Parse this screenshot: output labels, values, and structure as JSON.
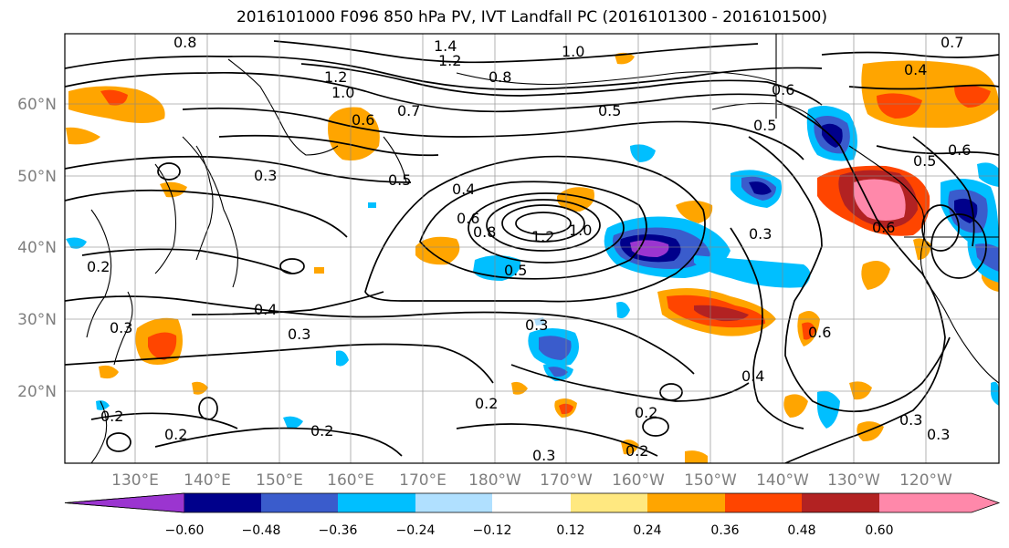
{
  "title": "2016101000 F096 850 hPa PV, IVT Landfall PC (2016101300 - 2016101500)",
  "map": {
    "lat_labels": [
      "60°N",
      "50°N",
      "40°N",
      "30°N",
      "20°N"
    ],
    "lon_labels": [
      "130°E",
      "140°E",
      "150°E",
      "160°E",
      "170°E",
      "180°W",
      "170°W",
      "160°W",
      "150°W",
      "140°W",
      "130°W",
      "120°W"
    ],
    "gridlines": true
  },
  "contour_labels": [
    "0.8",
    "1.4",
    "1.2",
    "1.0",
    "1.2",
    "1.0",
    "0.8",
    "0.7",
    "0.7",
    "0.5",
    "0.6",
    "0.4",
    "0.6",
    "0.5",
    "0.6",
    "0.3",
    "0.5",
    "0.4",
    "0.6",
    "0.8",
    "1.2",
    "1.0",
    "0.3",
    "0.5",
    "0.6",
    "0.5",
    "0.2",
    "0.4",
    "0.3",
    "0.3",
    "0.3",
    "0.6",
    "0.2",
    "0.4",
    "0.2",
    "0.2",
    "0.2",
    "0.2",
    "0.3",
    "0.3",
    "0.2",
    "0.3"
  ],
  "colorbar": {
    "ticks": [
      "−0.60",
      "−0.48",
      "−0.36",
      "−0.24",
      "−0.12",
      "0.12",
      "0.24",
      "0.36",
      "0.48",
      "0.60"
    ],
    "colors": [
      "#9b35d0",
      "#00008b",
      "#3a5ccc",
      "#00bfff",
      "#b0e0ff",
      "#ffffff",
      "#ffe880",
      "#ffa500",
      "#ff4500",
      "#b22222",
      "#ff88aa"
    ]
  },
  "shading_colors": {
    "neg_high": "#9b35d0",
    "neg_4": "#00008b",
    "neg_3": "#3a5ccc",
    "neg_2": "#00bfff",
    "neg_1": "#b0e0ff",
    "pos_1": "#ffe880",
    "pos_2": "#ffa500",
    "pos_3": "#ff4500",
    "pos_4": "#b22222",
    "pos_high": "#ff88aa"
  }
}
